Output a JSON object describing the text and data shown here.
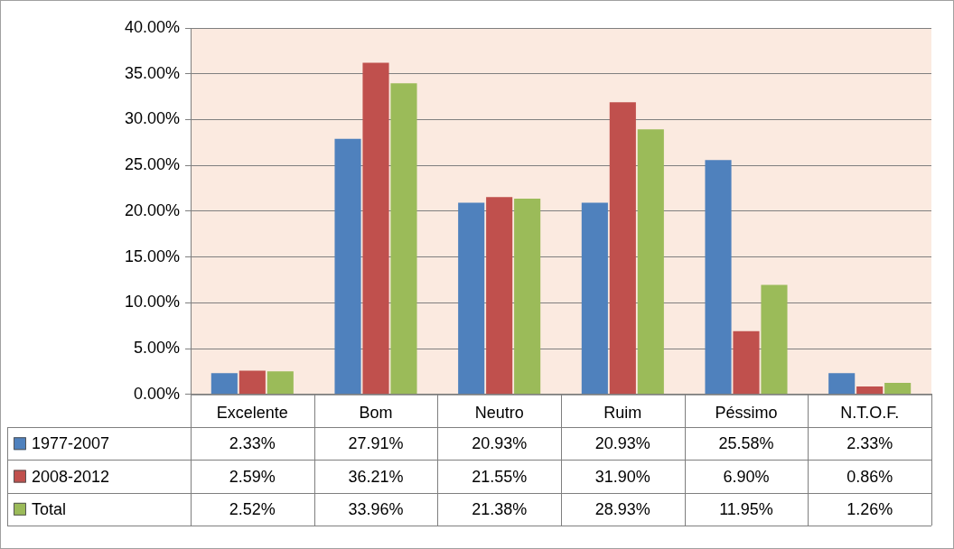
{
  "chart_data": {
    "type": "bar",
    "categories": [
      "Excelente",
      "Bom",
      "Neutro",
      "Ruim",
      "Péssimo",
      "N.T.O.F."
    ],
    "series": [
      {
        "name": "1977-2007",
        "color": "#4f81bd",
        "values": [
          2.33,
          27.91,
          20.93,
          20.93,
          25.58,
          2.33
        ],
        "value_labels": [
          "2.33%",
          "27.91%",
          "20.93%",
          "20.93%",
          "25.58%",
          "2.33%"
        ]
      },
      {
        "name": "2008-2012",
        "color": "#c0504d",
        "values": [
          2.59,
          36.21,
          21.55,
          31.9,
          6.9,
          0.86
        ],
        "value_labels": [
          "2.59%",
          "36.21%",
          "21.55%",
          "31.90%",
          "6.90%",
          "0.86%"
        ]
      },
      {
        "name": "Total",
        "color": "#9bbb59",
        "values": [
          2.52,
          33.96,
          21.38,
          28.93,
          11.95,
          1.26
        ],
        "value_labels": [
          "2.52%",
          "33.96%",
          "21.38%",
          "28.93%",
          "11.95%",
          "1.26%"
        ]
      }
    ],
    "ylim": [
      0,
      40
    ],
    "yticks": [
      {
        "value": 0,
        "label": "0.00%"
      },
      {
        "value": 5,
        "label": "5.00%"
      },
      {
        "value": 10,
        "label": "10.00%"
      },
      {
        "value": 15,
        "label": "15.00%"
      },
      {
        "value": 20,
        "label": "20.00%"
      },
      {
        "value": 25,
        "label": "25.00%"
      },
      {
        "value": 30,
        "label": "30.00%"
      },
      {
        "value": 35,
        "label": "35.00%"
      },
      {
        "value": 40,
        "label": "40.00%"
      }
    ],
    "grid": "y",
    "legend": "bottom"
  }
}
